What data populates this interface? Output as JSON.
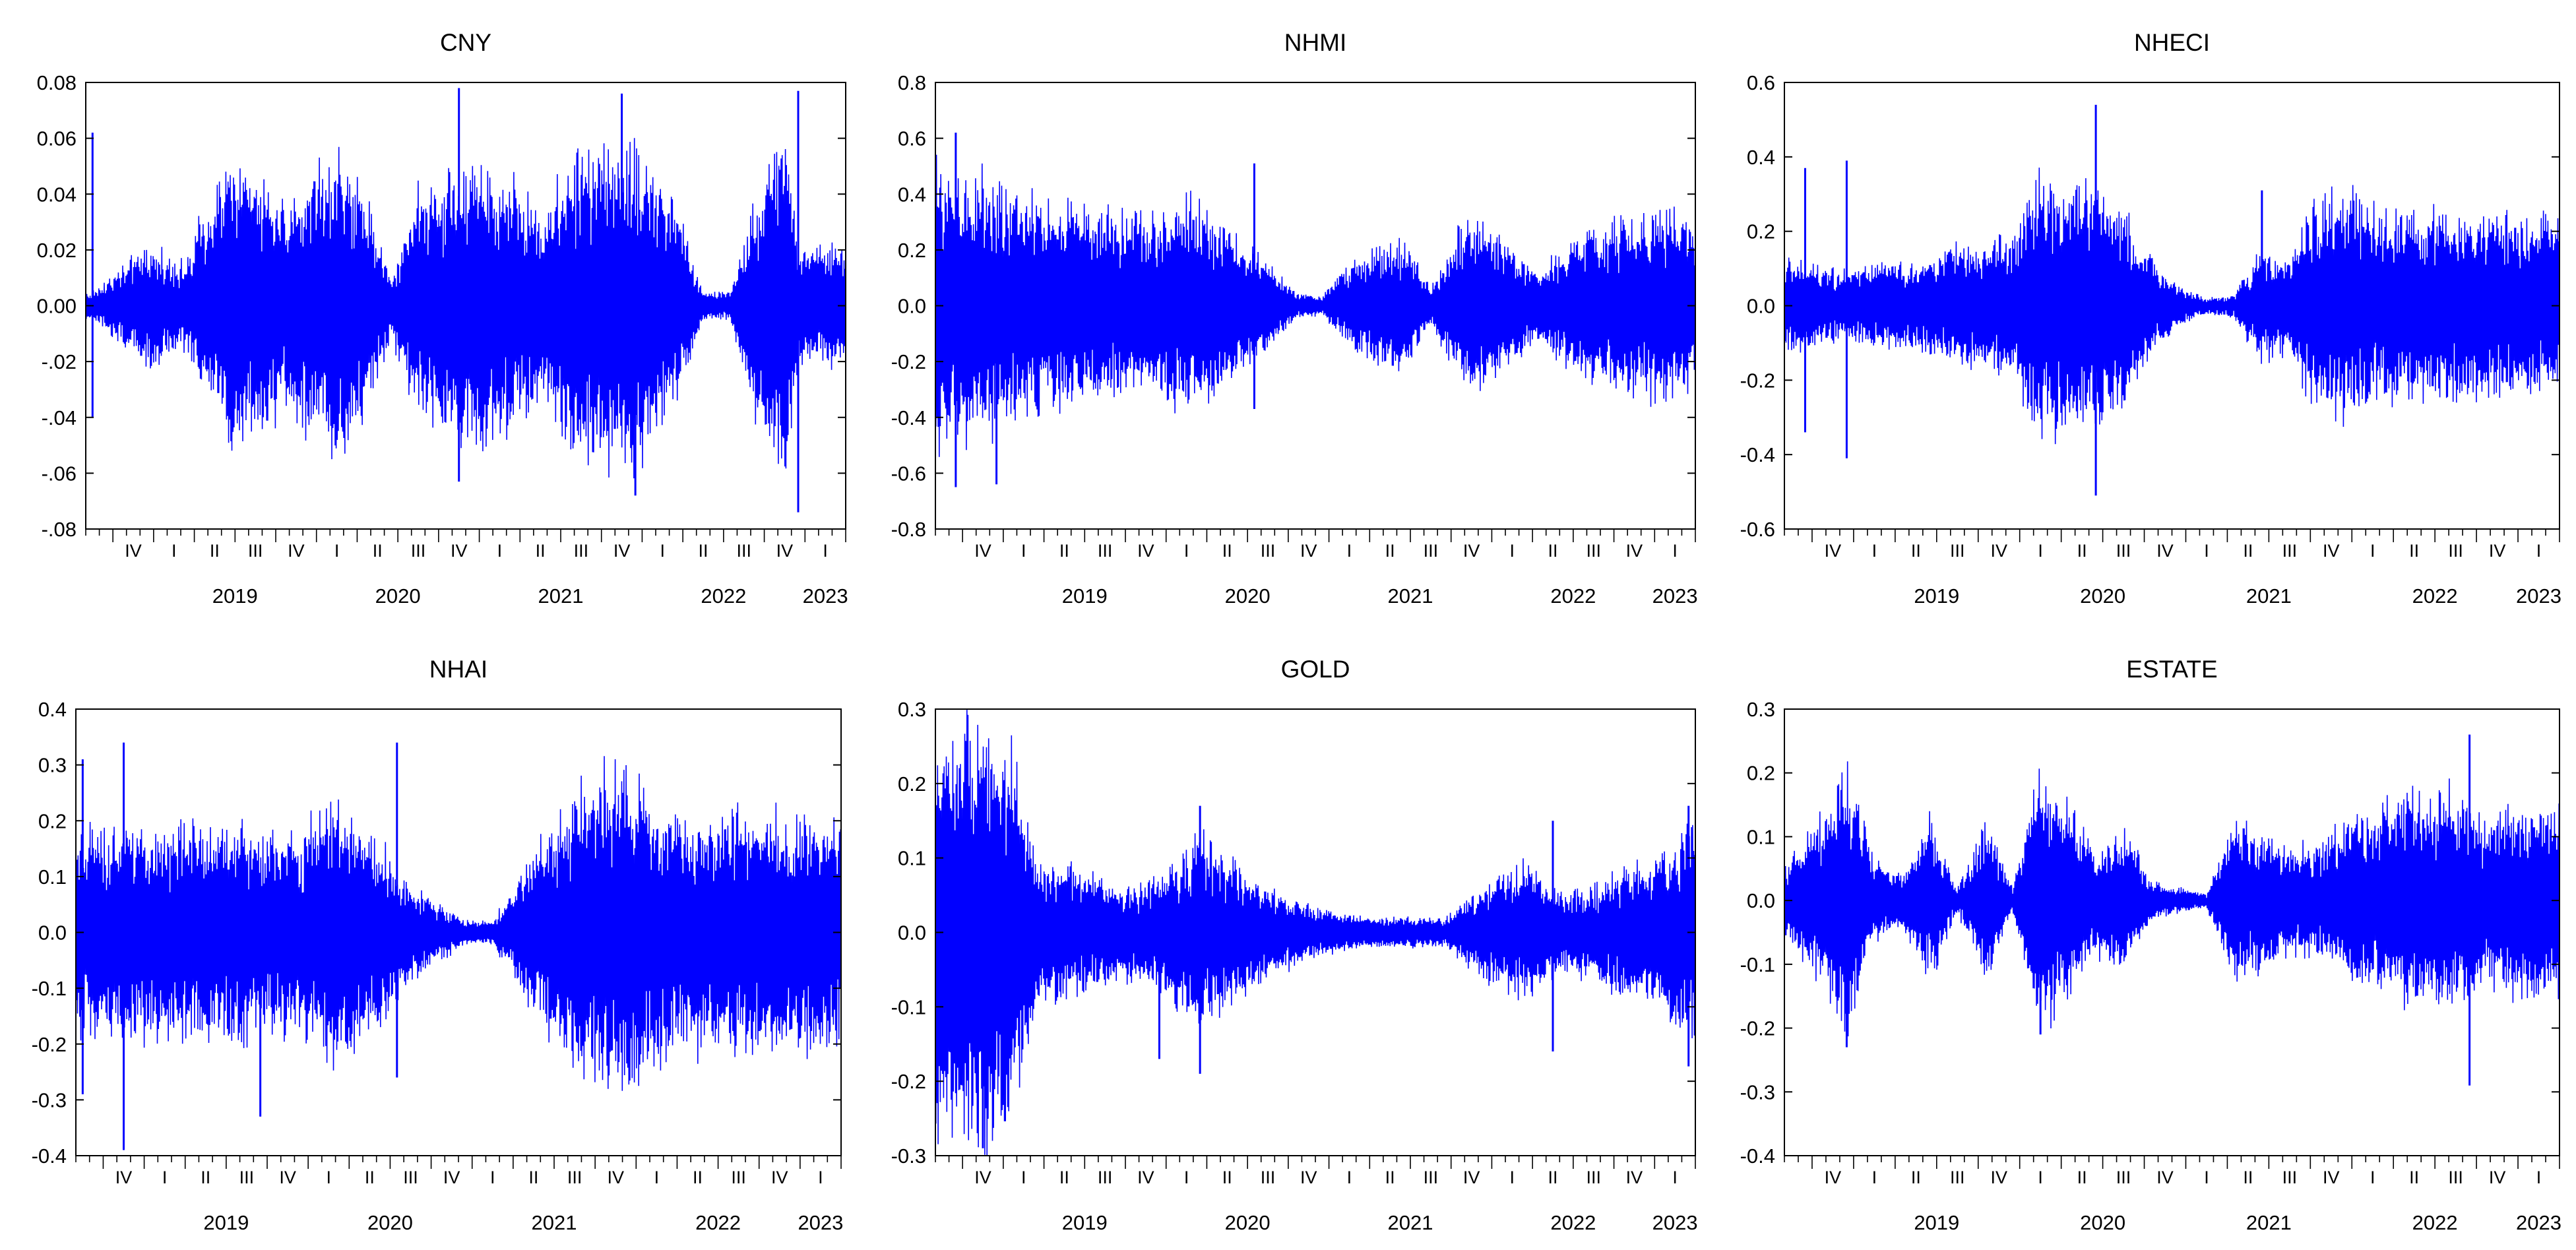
{
  "figure": {
    "colors": {
      "series": "#0000ff",
      "axis": "#000000",
      "background": "#ffffff"
    }
  },
  "chart_data": [
    {
      "type": "line",
      "title": "CNY",
      "ylim": [
        -0.08,
        0.08
      ],
      "yticks": [
        "0.08",
        "0.06",
        "0.04",
        "0.02",
        "0.00",
        "-.02",
        "-.04",
        "-.06",
        "-.08"
      ],
      "x_range": [
        "2018-08",
        "2023-04"
      ],
      "year_labels": [
        "2019",
        "2020",
        "2021",
        "2022",
        "2023"
      ],
      "quarter_labels": [
        "I",
        "II",
        "III",
        "IV"
      ],
      "grid": false,
      "legend": "none",
      "x": "daily observations, Aug 2018 to early 2023",
      "envelope": [
        [
          "2018-08",
          0.005
        ],
        [
          "2018-12",
          0.02
        ],
        [
          "2019-03",
          0.015
        ],
        [
          "2019-04",
          0.03
        ],
        [
          "2019-06",
          0.05
        ],
        [
          "2019-08",
          0.045
        ],
        [
          "2019-10",
          0.035
        ],
        [
          "2019-12",
          0.045
        ],
        [
          "2020-02",
          0.055
        ],
        [
          "2020-04",
          0.04
        ],
        [
          "2020-06",
          0.01
        ],
        [
          "2020-08",
          0.04
        ],
        [
          "2020-10",
          0.045
        ],
        [
          "2020-12",
          0.05
        ],
        [
          "2021-03",
          0.045
        ],
        [
          "2021-05",
          0.03
        ],
        [
          "2021-07",
          0.05
        ],
        [
          "2021-10",
          0.055
        ],
        [
          "2021-12",
          0.055
        ],
        [
          "2022-03",
          0.035
        ],
        [
          "2022-05",
          0.005
        ],
        [
          "2022-07",
          0.005
        ],
        [
          "2022-09",
          0.04
        ],
        [
          "2022-11",
          0.065
        ],
        [
          "2022-12",
          0.02
        ],
        [
          "2023-03",
          0.02
        ]
      ],
      "spikes": [
        [
          "2018-08",
          0.062
        ],
        [
          "2018-08",
          -0.04
        ],
        [
          "2020-11",
          0.078
        ],
        [
          "2020-11",
          -0.063
        ],
        [
          "2021-11",
          0.076
        ],
        [
          "2021-12",
          -0.068
        ],
        [
          "2022-12",
          0.077
        ],
        [
          "2022-12",
          -0.074
        ]
      ]
    },
    {
      "type": "line",
      "title": "NHMI",
      "ylim": [
        -0.8,
        0.8
      ],
      "yticks": [
        "0.8",
        "0.6",
        "0.4",
        "0.2",
        "0.0",
        "-0.2",
        "-0.4",
        "-0.6",
        "-0.8"
      ],
      "x_range": [
        "2018-08",
        "2023-04"
      ],
      "year_labels": [
        "2019",
        "2020",
        "2021",
        "2022",
        "2023"
      ],
      "quarter_labels": [
        "I",
        "II",
        "III",
        "IV"
      ],
      "grid": false,
      "legend": "none",
      "x": "daily observations, Aug 2018 to early 2023",
      "envelope": [
        [
          "2018-08",
          0.5
        ],
        [
          "2018-12",
          0.42
        ],
        [
          "2019-04",
          0.35
        ],
        [
          "2019-08",
          0.33
        ],
        [
          "2019-12",
          0.3
        ],
        [
          "2020-02",
          0.38
        ],
        [
          "2020-04",
          0.32
        ],
        [
          "2020-06",
          0.22
        ],
        [
          "2020-08",
          0.15
        ],
        [
          "2020-10",
          0.05
        ],
        [
          "2020-12",
          0.03
        ],
        [
          "2021-02",
          0.15
        ],
        [
          "2021-04",
          0.2
        ],
        [
          "2021-06",
          0.22
        ],
        [
          "2021-08",
          0.06
        ],
        [
          "2021-10",
          0.25
        ],
        [
          "2021-12",
          0.3
        ],
        [
          "2022-02",
          0.2
        ],
        [
          "2022-04",
          0.12
        ],
        [
          "2022-06",
          0.22
        ],
        [
          "2022-09",
          0.28
        ],
        [
          "2022-12",
          0.32
        ],
        [
          "2023-03",
          0.3
        ]
      ],
      "spikes": [
        [
          "2018-09",
          0.62
        ],
        [
          "2018-09",
          -0.65
        ],
        [
          "2018-12",
          -0.64
        ],
        [
          "2020-07",
          0.51
        ],
        [
          "2020-07",
          -0.37
        ]
      ]
    },
    {
      "type": "line",
      "title": "NHECI",
      "ylim": [
        -0.6,
        0.6
      ],
      "yticks": [
        "0.6",
        "0.4",
        "0.2",
        "0.0",
        "-0.2",
        "-0.4",
        "-0.6"
      ],
      "x_range": [
        "2018-08",
        "2023-04"
      ],
      "year_labels": [
        "2019",
        "2020",
        "2021",
        "2022",
        "2023"
      ],
      "quarter_labels": [
        "I",
        "II",
        "III",
        "IV"
      ],
      "grid": false,
      "legend": "none",
      "x": "daily observations, Aug 2018 to early 2023",
      "envelope": [
        [
          "2018-08",
          0.12
        ],
        [
          "2018-12",
          0.09
        ],
        [
          "2019-04",
          0.11
        ],
        [
          "2019-08",
          0.15
        ],
        [
          "2019-12",
          0.18
        ],
        [
          "2020-02",
          0.35
        ],
        [
          "2020-04",
          0.3
        ],
        [
          "2020-06",
          0.32
        ],
        [
          "2020-08",
          0.27
        ],
        [
          "2020-10",
          0.12
        ],
        [
          "2020-12",
          0.05
        ],
        [
          "2021-02",
          0.02
        ],
        [
          "2021-04",
          0.03
        ],
        [
          "2021-06",
          0.15
        ],
        [
          "2021-08",
          0.12
        ],
        [
          "2021-10",
          0.28
        ],
        [
          "2021-12",
          0.3
        ],
        [
          "2022-02",
          0.25
        ],
        [
          "2022-06",
          0.24
        ],
        [
          "2022-10",
          0.24
        ],
        [
          "2023-03",
          0.23
        ]
      ],
      "spikes": [
        [
          "2018-09",
          0.37
        ],
        [
          "2018-09",
          -0.34
        ],
        [
          "2018-12",
          0.39
        ],
        [
          "2018-12",
          -0.41
        ],
        [
          "2020-06",
          0.54
        ],
        [
          "2020-06",
          -0.51
        ],
        [
          "2021-06",
          0.31
        ]
      ]
    },
    {
      "type": "line",
      "title": "NHAI",
      "ylim": [
        -0.4,
        0.4
      ],
      "yticks": [
        "0.4",
        "0.3",
        "0.2",
        "0.1",
        "0.0",
        "-0.1",
        "-0.2",
        "-0.3",
        "-0.4"
      ],
      "x_range": [
        "2018-08",
        "2023-04"
      ],
      "year_labels": [
        "2019",
        "2020",
        "2021",
        "2022",
        "2023"
      ],
      "quarter_labels": [
        "I",
        "II",
        "III",
        "IV"
      ],
      "grid": false,
      "legend": "none",
      "x": "daily observations, Aug 2018 to early 2023",
      "envelope": [
        [
          "2018-08",
          0.17
        ],
        [
          "2018-12",
          0.18
        ],
        [
          "2019-04",
          0.18
        ],
        [
          "2019-08",
          0.19
        ],
        [
          "2019-12",
          0.17
        ],
        [
          "2020-02",
          0.23
        ],
        [
          "2020-04",
          0.2
        ],
        [
          "2020-06",
          0.15
        ],
        [
          "2020-08",
          0.08
        ],
        [
          "2020-10",
          0.05
        ],
        [
          "2020-12",
          0.02
        ],
        [
          "2021-02",
          0.02
        ],
        [
          "2021-04",
          0.1
        ],
        [
          "2021-06",
          0.17
        ],
        [
          "2021-08",
          0.23
        ],
        [
          "2021-10",
          0.28
        ],
        [
          "2021-12",
          0.27
        ],
        [
          "2022-02",
          0.22
        ],
        [
          "2022-06",
          0.2
        ],
        [
          "2022-10",
          0.2
        ],
        [
          "2023-03",
          0.2
        ]
      ],
      "spikes": [
        [
          "2018-08",
          0.31
        ],
        [
          "2018-08",
          -0.29
        ],
        [
          "2018-11",
          0.34
        ],
        [
          "2018-11",
          -0.39
        ],
        [
          "2019-09",
          -0.33
        ],
        [
          "2020-07",
          0.34
        ],
        [
          "2020-07",
          -0.26
        ]
      ]
    },
    {
      "type": "line",
      "title": "GOLD",
      "ylim": [
        -0.3,
        0.3
      ],
      "yticks": [
        "0.3",
        "0.2",
        "0.1",
        "0.0",
        "-0.1",
        "-0.2",
        "-0.3"
      ],
      "x_range": [
        "2018-08",
        "2023-04"
      ],
      "year_labels": [
        "2019",
        "2020",
        "2021",
        "2022",
        "2023"
      ],
      "quarter_labels": [
        "I",
        "II",
        "III",
        "IV"
      ],
      "grid": false,
      "legend": "none",
      "x": "daily observations, Aug 2018 to early 2023",
      "envelope": [
        [
          "2018-08",
          0.26
        ],
        [
          "2018-11",
          0.27
        ],
        [
          "2019-01",
          0.25
        ],
        [
          "2019-03",
          0.1
        ],
        [
          "2019-06",
          0.08
        ],
        [
          "2019-09",
          0.06
        ],
        [
          "2019-12",
          0.07
        ],
        [
          "2020-03",
          0.13
        ],
        [
          "2020-06",
          0.08
        ],
        [
          "2020-09",
          0.05
        ],
        [
          "2020-12",
          0.03
        ],
        [
          "2021-03",
          0.02
        ],
        [
          "2021-06",
          0.02
        ],
        [
          "2021-09",
          0.02
        ],
        [
          "2021-12",
          0.06
        ],
        [
          "2022-03",
          0.09
        ],
        [
          "2022-06",
          0.05
        ],
        [
          "2022-09",
          0.07
        ],
        [
          "2022-12",
          0.1
        ],
        [
          "2023-03",
          0.14
        ]
      ],
      "spikes": [
        [
          "2018-11",
          -0.29
        ],
        [
          "2019-12",
          -0.17
        ],
        [
          "2020-03",
          0.17
        ],
        [
          "2020-03",
          -0.19
        ],
        [
          "2022-05",
          0.15
        ],
        [
          "2022-05",
          -0.16
        ],
        [
          "2023-03",
          0.17
        ],
        [
          "2023-03",
          -0.18
        ]
      ]
    },
    {
      "type": "line",
      "title": "ESTATE",
      "ylim": [
        -0.4,
        0.3
      ],
      "yticks": [
        "0.3",
        "0.2",
        "0.1",
        "0.0",
        "-0.1",
        "-0.2",
        "-0.3",
        "-0.4"
      ],
      "x_range": [
        "2018-08",
        "2023-04"
      ],
      "year_labels": [
        "2019",
        "2020",
        "2021",
        "2022",
        "2023"
      ],
      "quarter_labels": [
        "I",
        "II",
        "III",
        "IV"
      ],
      "grid": false,
      "legend": "none",
      "x": "daily observations, Aug 2018 to early 2023",
      "envelope": [
        [
          "2018-08",
          0.06
        ],
        [
          "2018-10",
          0.12
        ],
        [
          "2018-12",
          0.2
        ],
        [
          "2019-02",
          0.06
        ],
        [
          "2019-04",
          0.04
        ],
        [
          "2019-06",
          0.12
        ],
        [
          "2019-08",
          0.02
        ],
        [
          "2019-10",
          0.12
        ],
        [
          "2019-12",
          0.02
        ],
        [
          "2020-02",
          0.2
        ],
        [
          "2020-04",
          0.15
        ],
        [
          "2020-06",
          0.08
        ],
        [
          "2020-08",
          0.11
        ],
        [
          "2020-10",
          0.03
        ],
        [
          "2020-12",
          0.02
        ],
        [
          "2021-02",
          0.01
        ],
        [
          "2021-04",
          0.12
        ],
        [
          "2021-06",
          0.1
        ],
        [
          "2021-08",
          0.08
        ],
        [
          "2021-10",
          0.09
        ],
        [
          "2021-12",
          0.11
        ],
        [
          "2022-02",
          0.13
        ],
        [
          "2022-04",
          0.17
        ],
        [
          "2022-06",
          0.15
        ],
        [
          "2022-08",
          0.17
        ],
        [
          "2022-10",
          0.12
        ],
        [
          "2022-12",
          0.14
        ],
        [
          "2023-03",
          0.15
        ]
      ],
      "spikes": [
        [
          "2018-12",
          -0.23
        ],
        [
          "2020-02",
          -0.21
        ],
        [
          "2022-09",
          0.26
        ],
        [
          "2022-09",
          -0.29
        ]
      ]
    }
  ]
}
